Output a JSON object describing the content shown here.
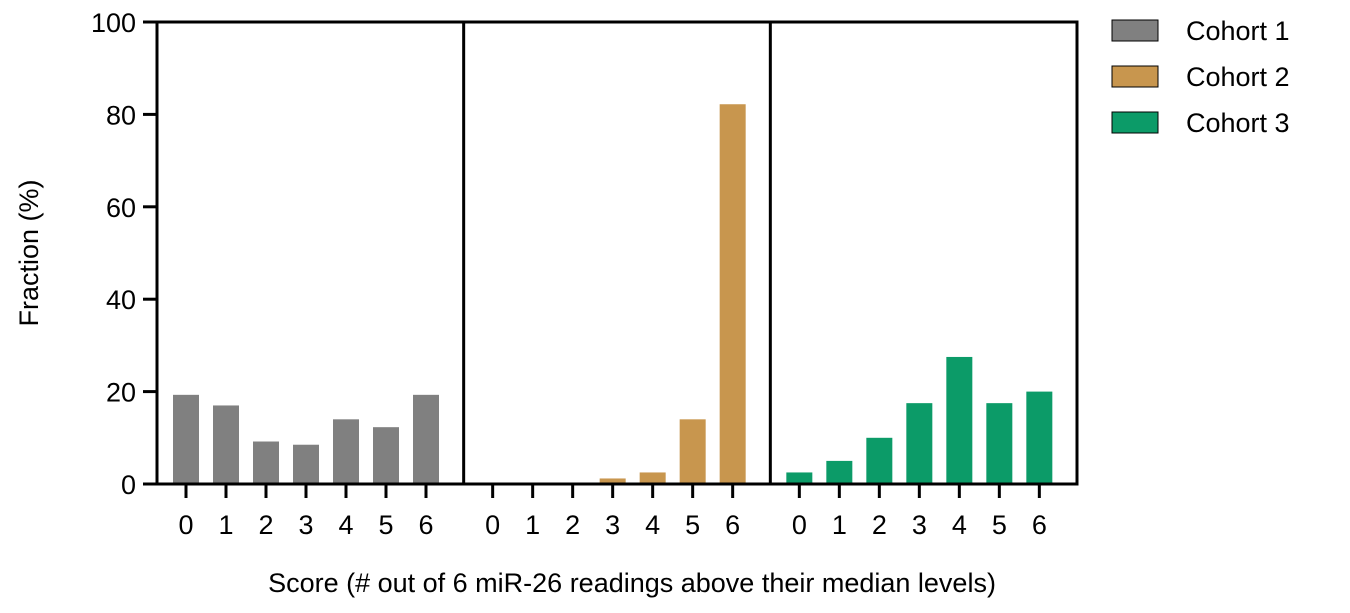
{
  "chart_data": {
    "type": "bar",
    "title": "",
    "xlabel": "Score (# out of 6 miR-26 readings above their median levels)",
    "ylabel": "Fraction (%)",
    "ylim": [
      0,
      100
    ],
    "yticks": [
      0,
      20,
      40,
      60,
      80,
      100
    ],
    "grid": false,
    "legend_position": "top-right",
    "categories": [
      "0",
      "1",
      "2",
      "3",
      "4",
      "5",
      "6"
    ],
    "series": [
      {
        "name": "Cohort 1",
        "color": "#808080",
        "values": [
          19.3,
          17.0,
          9.2,
          8.5,
          14.0,
          12.3,
          19.3
        ]
      },
      {
        "name": "Cohort 2",
        "color": "#C8964E",
        "values": [
          0,
          0,
          0,
          1.2,
          2.5,
          14.0,
          82.2
        ]
      },
      {
        "name": "Cohort 3",
        "color": "#0C9B68",
        "values": [
          2.5,
          5.0,
          10.0,
          17.5,
          27.5,
          17.5,
          20.0
        ]
      }
    ]
  }
}
